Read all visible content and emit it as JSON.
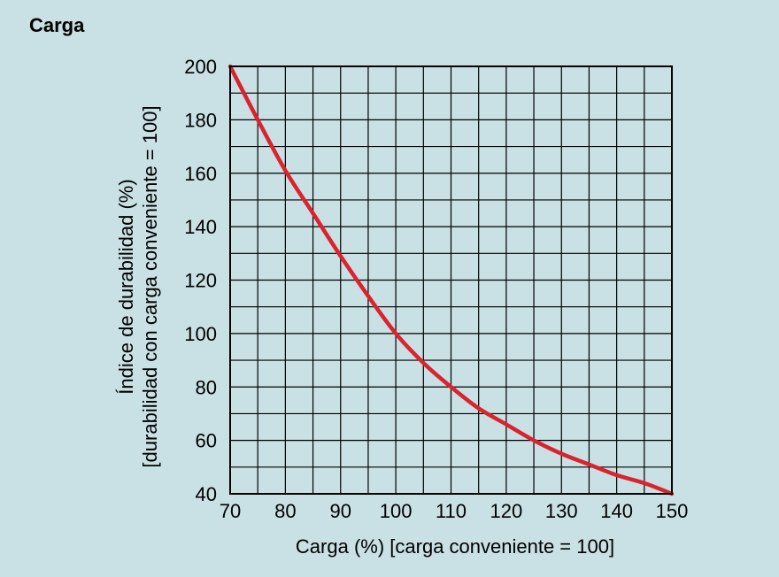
{
  "page": {
    "title": "Carga"
  },
  "chart_data": {
    "type": "line",
    "title": "Carga",
    "xlabel": "Carga (%) [carga conveniente = 100]",
    "ylabel_lines": [
      "Índice de durabilidad (%)",
      "[durabilidad con carga conveniente = 100]"
    ],
    "xlim": [
      70,
      150
    ],
    "ylim": [
      40,
      200
    ],
    "x_ticks": [
      70,
      80,
      90,
      100,
      110,
      120,
      130,
      140,
      150
    ],
    "y_ticks": [
      40,
      60,
      80,
      100,
      120,
      140,
      160,
      180,
      200
    ],
    "x_grid_step": 5,
    "y_grid_step": 10,
    "grid": true,
    "series": [
      {
        "name": "Índice de durabilidad",
        "color": "#d9232d",
        "x": [
          70,
          75,
          80,
          85,
          90,
          95,
          100,
          105,
          110,
          115,
          120,
          125,
          130,
          135,
          140,
          145,
          150
        ],
        "y": [
          200,
          180,
          161,
          145,
          129,
          114,
          100,
          89,
          80,
          72,
          66,
          60,
          55,
          51,
          47,
          44,
          40
        ]
      }
    ]
  }
}
